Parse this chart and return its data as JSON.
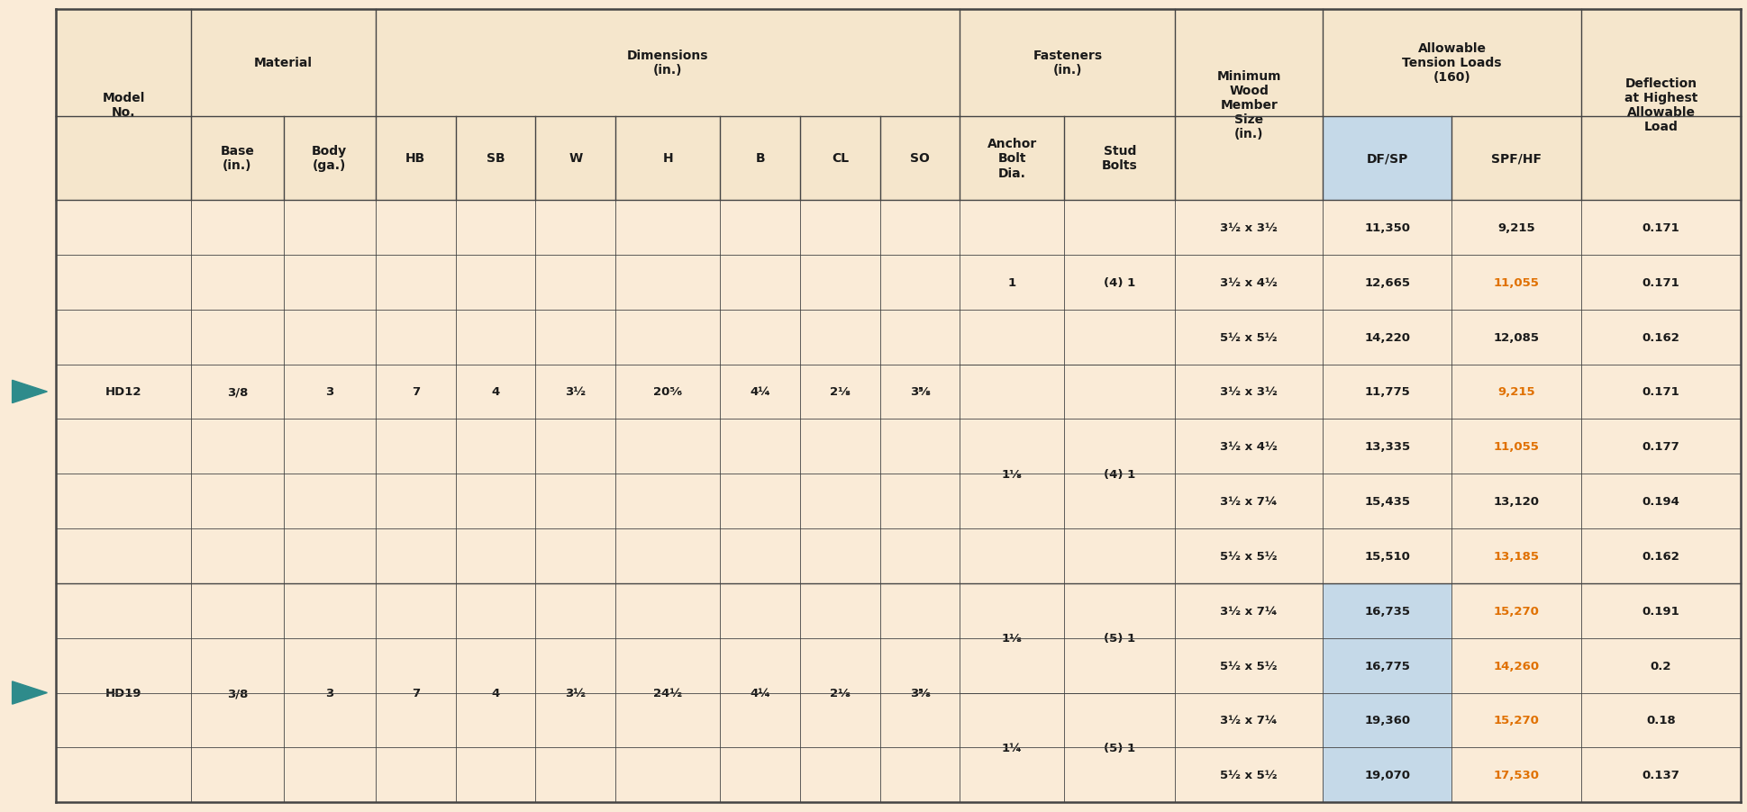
{
  "bg_color": "#faebd7",
  "header_bg": "#f5e6cc",
  "dfsp_bg": "#c5d9e8",
  "border_color": "#444444",
  "orange_color": "#e07000",
  "black_color": "#1a1a1a",
  "teal_color": "#2e8b8b",
  "col_widths_rel": [
    1.1,
    0.75,
    0.75,
    0.65,
    0.65,
    0.65,
    0.85,
    0.65,
    0.65,
    0.65,
    0.85,
    0.9,
    1.2,
    1.05,
    1.05,
    1.3
  ],
  "rows": [
    [
      "HD12",
      "3/8",
      "3",
      "7",
      "4",
      "3½",
      "20⁵⁄₆",
      "4¼",
      "2⅛",
      "3⅝",
      "1",
      "(4) 1",
      "3½ x 3½",
      "11,350",
      "9,215",
      "0.171"
    ],
    [
      "",
      "",
      "",
      "",
      "",
      "",
      "",
      "",
      "",
      "",
      "",
      "",
      "3½ x 4½",
      "12,665",
      "11,055",
      "0.171"
    ],
    [
      "",
      "",
      "",
      "",
      "",
      "",
      "",
      "",
      "",
      "",
      "",
      "",
      "5½ x 5½",
      "14,220",
      "12,085",
      "0.162"
    ],
    [
      "",
      "",
      "",
      "",
      "",
      "",
      "",
      "",
      "",
      "",
      "1⅛",
      "(4) 1",
      "3½ x 3½",
      "11,775",
      "9,215",
      "0.171"
    ],
    [
      "",
      "",
      "",
      "",
      "",
      "",
      "",
      "",
      "",
      "",
      "",
      "",
      "3½ x 4½",
      "13,335",
      "11,055",
      "0.177"
    ],
    [
      "",
      "",
      "",
      "",
      "",
      "",
      "",
      "",
      "",
      "",
      "",
      "",
      "3½ x 7¼",
      "15,435",
      "13,120",
      "0.194"
    ],
    [
      "",
      "",
      "",
      "",
      "",
      "",
      "",
      "",
      "",
      "",
      "",
      "",
      "5½ x 5½",
      "15,510",
      "13,185",
      "0.162"
    ],
    [
      "HD19",
      "3/8",
      "3",
      "7",
      "4",
      "3½",
      "24½",
      "4¼",
      "2⅛",
      "3⅝",
      "1⅛",
      "(5) 1",
      "3½ x 7¼",
      "16,735",
      "15,270",
      "0.191"
    ],
    [
      "",
      "",
      "",
      "",
      "",
      "",
      "",
      "",
      "",
      "",
      "",
      "",
      "5½ x 5½",
      "16,775",
      "14,260",
      "0.2"
    ],
    [
      "",
      "",
      "",
      "",
      "",
      "",
      "",
      "",
      "",
      "",
      "1¼",
      "(5) 1",
      "3½ x 7¼",
      "19,360",
      "15,270",
      "0.18"
    ],
    [
      "",
      "",
      "",
      "",
      "",
      "",
      "",
      "",
      "",
      "",
      "",
      "",
      "5½ x 5½",
      "19,070",
      "17,530",
      "0.137"
    ]
  ],
  "orange_cells": [
    [
      1,
      14
    ],
    [
      3,
      14
    ],
    [
      4,
      14
    ],
    [
      6,
      14
    ],
    [
      7,
      14
    ],
    [
      8,
      14
    ],
    [
      9,
      14
    ],
    [
      10,
      14
    ]
  ],
  "dfsp_data_rows": [
    7,
    8,
    9,
    10
  ]
}
